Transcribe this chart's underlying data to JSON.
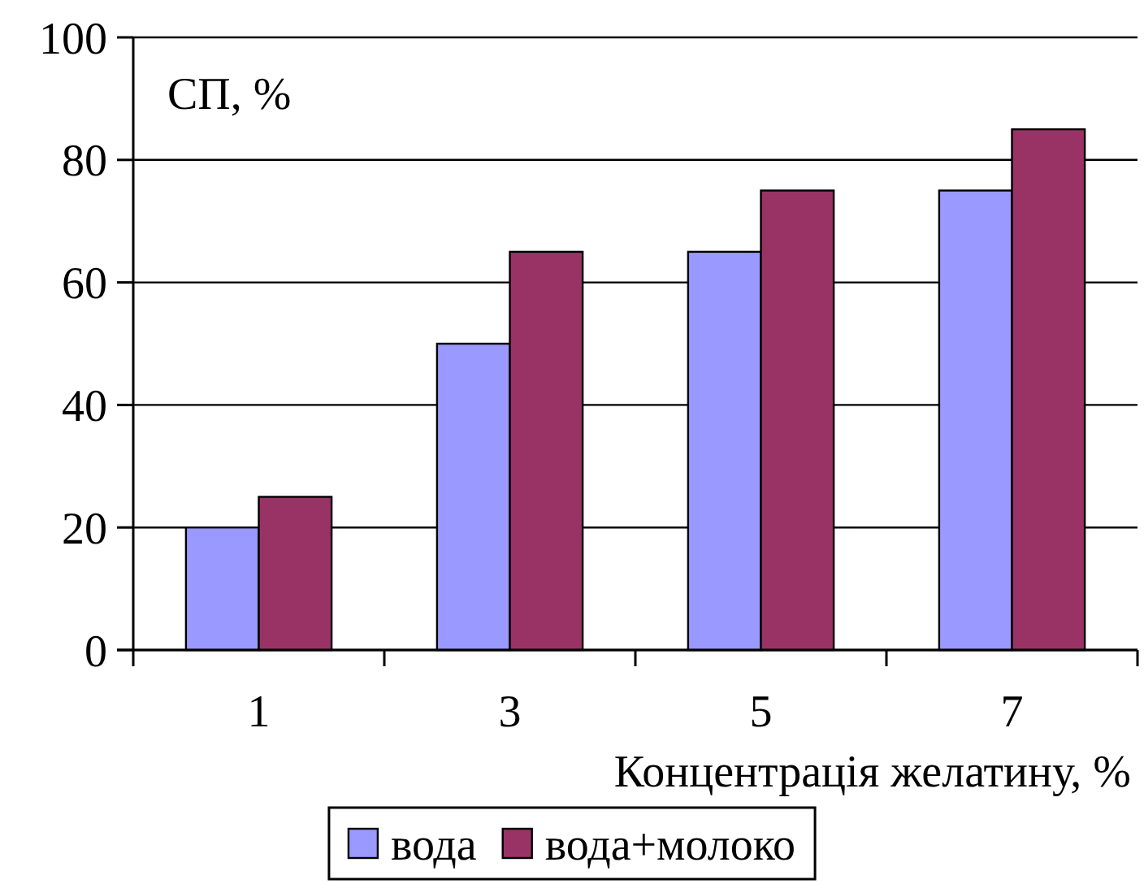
{
  "chart_data": {
    "type": "bar",
    "categories": [
      "1",
      "3",
      "5",
      "7"
    ],
    "series": [
      {
        "name": "вода",
        "color": "#9999ff",
        "values": [
          20,
          50,
          65,
          75
        ]
      },
      {
        "name": "вода+молоко",
        "color": "#993366",
        "values": [
          25,
          65,
          75,
          85
        ]
      }
    ],
    "ylabel": "СП, %",
    "xlabel": "Концентрація желатину, %",
    "ylim": [
      0,
      100
    ],
    "yticks": [
      0,
      20,
      40,
      60,
      80,
      100
    ],
    "grid": "y",
    "legend": "bottom"
  }
}
